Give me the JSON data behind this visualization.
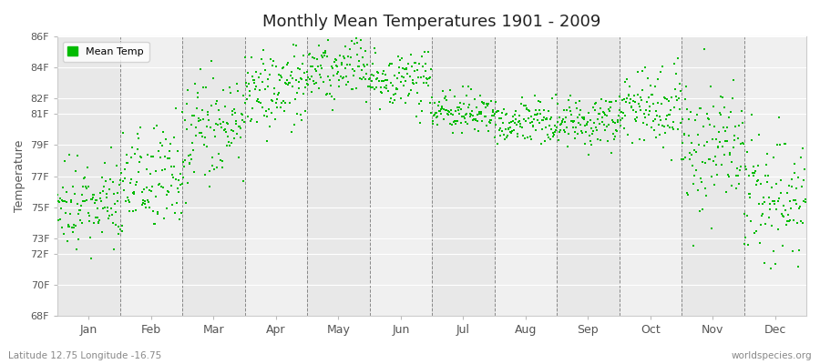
{
  "title": "Monthly Mean Temperatures 1901 - 2009",
  "ylabel": "Temperature",
  "bottom_left": "Latitude 12.75 Longitude -16.75",
  "bottom_right": "worldspecies.org",
  "legend_label": "Mean Temp",
  "marker_color": "#00bb00",
  "marker_size": 4,
  "fig_bg_color": "#ffffff",
  "plot_bg_color": "#f0f0f0",
  "band_colors": [
    "#e8e8e8",
    "#f0f0f0"
  ],
  "ylim": [
    68,
    86
  ],
  "yticks": [
    68,
    70,
    72,
    73,
    75,
    77,
    79,
    81,
    82,
    84,
    86
  ],
  "ytick_labels": [
    "68F",
    "70F",
    "72F",
    "73F",
    "75F",
    "77F",
    "79F",
    "81F",
    "82F",
    "84F",
    "86F"
  ],
  "months": [
    "Jan",
    "Feb",
    "Mar",
    "Apr",
    "May",
    "Jun",
    "Jul",
    "Aug",
    "Sep",
    "Oct",
    "Nov",
    "Dec"
  ],
  "monthly_means": [
    75.0,
    77.0,
    80.0,
    82.5,
    84.0,
    83.0,
    81.0,
    80.5,
    80.5,
    81.5,
    79.0,
    75.5
  ],
  "monthly_stds": [
    1.6,
    1.8,
    1.8,
    1.4,
    1.1,
    0.9,
    0.7,
    0.7,
    0.8,
    1.2,
    2.0,
    2.0
  ],
  "n_years": 109,
  "start_year": 1901,
  "seed": 42
}
